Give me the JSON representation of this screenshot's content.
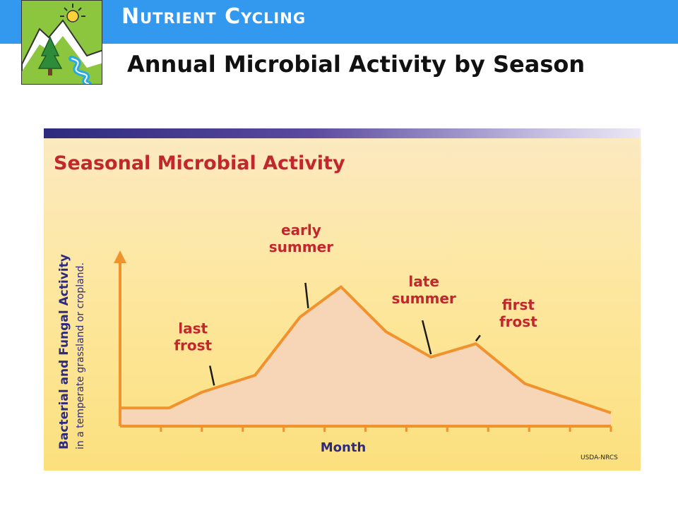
{
  "header": {
    "title": "Nutrient Cycling",
    "subtitle": "Annual Microbial Activity by Season"
  },
  "logo": {
    "icon": "mountain-tree-river-sun-logo"
  },
  "credit": "USDA-NRCS",
  "colors": {
    "header_band": "#3399ee",
    "logo_green": "#8cc63f",
    "chart_title": "#c1272d",
    "axis_label": "#2e2a7e",
    "curve": "#f0922d",
    "fill": "#f7d6b8"
  },
  "chart_data": {
    "type": "area",
    "title": "Seasonal Microbial Activity",
    "xlabel": "Month",
    "ylabel": "Bacterial and Fungal Activity",
    "ylabel_sub": "in a temperate grassland or cropland.",
    "x": [
      0,
      1.2,
      2,
      3.3,
      4.4,
      5.4,
      6.5,
      7.6,
      8.7,
      9.9,
      12
    ],
    "values": [
      0.0,
      0.0,
      0.13,
      0.27,
      0.75,
      1.0,
      0.63,
      0.42,
      0.53,
      0.2,
      -0.04
    ],
    "xlim": [
      0,
      12
    ],
    "ylim": [
      -0.15,
      1.3
    ],
    "grid": false,
    "legend": "none",
    "annotations": [
      {
        "lines": [
          "last",
          "frost"
        ],
        "target_x": 2.3
      },
      {
        "lines": [
          "early",
          "summer"
        ],
        "target_x": 4.6
      },
      {
        "lines": [
          "late",
          "summer"
        ],
        "target_x": 7.6
      },
      {
        "lines": [
          "first",
          "frost"
        ],
        "target_x": 8.7
      }
    ]
  }
}
